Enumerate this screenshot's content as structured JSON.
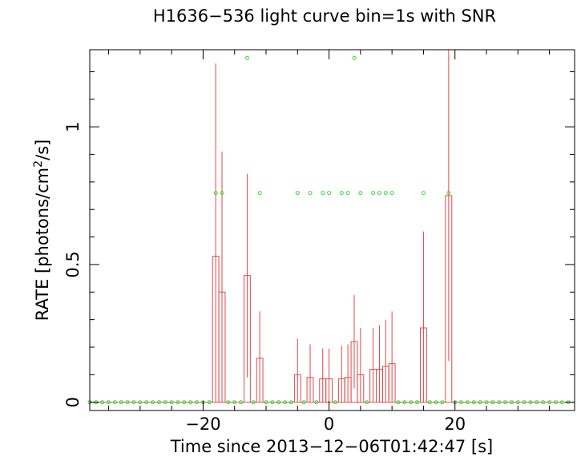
{
  "chart_data": {
    "type": "line",
    "title": "H1636−536 light curve bin=1s with SNR",
    "xlabel": "Time since 2013−12−06T01:42:47 [s]",
    "ylabel_prefix": "RATE [photons/cm",
    "ylabel_sup": "2",
    "ylabel_suffix": "/s]",
    "xlim": [
      -38,
      39
    ],
    "ylim": [
      -0.03,
      1.28
    ],
    "x_ticks": [
      {
        "value": -20,
        "label": "−20"
      },
      {
        "value": 0,
        "label": "0"
      },
      {
        "value": 20,
        "label": "20"
      }
    ],
    "y_ticks": [
      {
        "value": 0,
        "label": "0"
      },
      {
        "value": 0.5,
        "label": "0.5"
      },
      {
        "value": 1,
        "label": "1"
      }
    ],
    "colors": {
      "rate": "#e0484a",
      "snr": "#33dd33",
      "axes": "#000000"
    },
    "series": [
      {
        "type": "step",
        "bin_width": 1,
        "points": [
          {
            "x": -18,
            "y": 0.53,
            "err": 0.7
          },
          {
            "x": -17,
            "y": 0.4,
            "err": 0.51
          },
          {
            "x": -13,
            "y": 0.46,
            "err": 0.37
          },
          {
            "x": -11,
            "y": 0.16,
            "err": 0.17
          },
          {
            "x": -5,
            "y": 0.1,
            "err": 0.13
          },
          {
            "x": -3,
            "y": 0.09,
            "err": 0.12
          },
          {
            "x": -1,
            "y": 0.085,
            "err": 0.11
          },
          {
            "x": 0,
            "y": 0.085,
            "err": 0.11
          },
          {
            "x": 2,
            "y": 0.085,
            "err": 0.12
          },
          {
            "x": 3,
            "y": 0.09,
            "err": 0.12
          },
          {
            "x": 4,
            "y": 0.22,
            "err": 0.17
          },
          {
            "x": 5,
            "y": 0.1,
            "err": 0.17
          },
          {
            "x": 7,
            "y": 0.12,
            "err": 0.15
          },
          {
            "x": 8,
            "y": 0.12,
            "err": 0.16
          },
          {
            "x": 9,
            "y": 0.13,
            "err": 0.17
          },
          {
            "x": 10,
            "y": 0.14,
            "err": 0.19
          },
          {
            "x": 15,
            "y": 0.27,
            "err": 0.35
          },
          {
            "x": 19,
            "y": 0.75,
            "err": 0.6
          }
        ]
      },
      {
        "type": "scatter",
        "x": [
          -38,
          -37,
          -36,
          -35,
          -34,
          -33,
          -32,
          -31,
          -30,
          -29,
          -28,
          -27,
          -26,
          -25,
          -24,
          -23,
          -22,
          -21,
          -20,
          -19,
          -18,
          -17,
          -16,
          -15,
          -14,
          -13,
          -12,
          -11,
          -10,
          -9,
          -8,
          -7,
          -6,
          -5,
          -4,
          -3,
          -2,
          -1,
          0,
          1,
          2,
          3,
          4,
          5,
          6,
          7,
          8,
          9,
          10,
          11,
          12,
          13,
          14,
          15,
          16,
          17,
          18,
          19,
          20,
          21,
          22,
          23,
          24,
          25,
          26,
          27,
          28,
          29,
          30,
          31,
          32,
          33,
          34,
          35,
          36,
          37,
          38
        ],
        "y": [
          0,
          0,
          0,
          0,
          0,
          0,
          0,
          0,
          0,
          0,
          0,
          0,
          0,
          0,
          0,
          0,
          0,
          0,
          0,
          0,
          0.76,
          0.76,
          0,
          0,
          0,
          1.25,
          0,
          0.76,
          0,
          0,
          0,
          0,
          0,
          0.76,
          0,
          0.76,
          0,
          0.76,
          0.76,
          0,
          0.76,
          0.76,
          1.25,
          0.76,
          0,
          0.76,
          0.76,
          0.76,
          0.76,
          0,
          0,
          0,
          0,
          0.76,
          0,
          0,
          0,
          0.76,
          0,
          0,
          0,
          0,
          0,
          0,
          0,
          0,
          0,
          0,
          0,
          0,
          0,
          0,
          0,
          0,
          0,
          0,
          0
        ]
      }
    ]
  }
}
